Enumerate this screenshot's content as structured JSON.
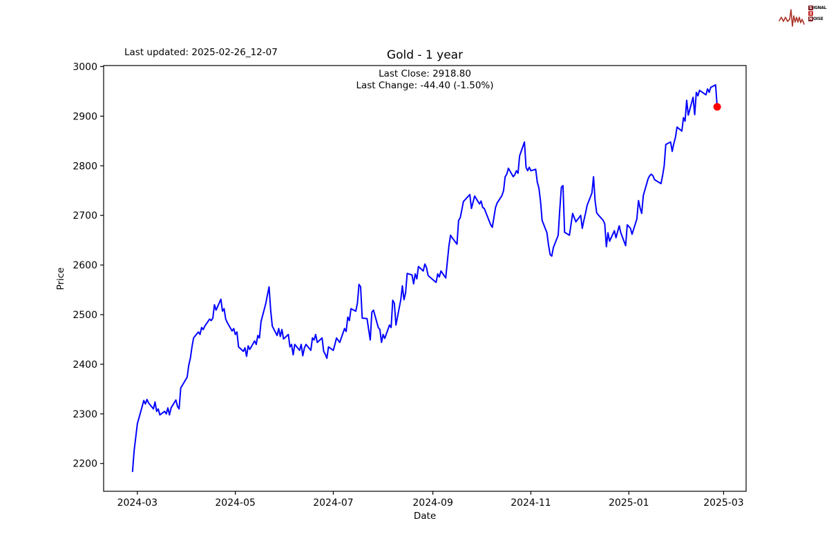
{
  "header": {
    "last_updated": "Last updated: 2025-02-26_12-07",
    "title": "Gold - 1 year",
    "annotation_line1": "Last Close: 2918.80",
    "annotation_line2": "Last Change: -44.40 (-1.50%)"
  },
  "logo": {
    "row1_initial": "S",
    "row1_rest": "IGNAL",
    "row2_initial": "2",
    "row2_rest": "",
    "row3_initial": "N",
    "row3_rest": "OISE",
    "wave_color": "#a93226",
    "box_dark": "#7e1a1d",
    "box_bright": "#c93030"
  },
  "chart_data": {
    "type": "line",
    "title": "Gold - 1 year",
    "xlabel": "Date",
    "ylabel": "Price",
    "line_color": "#0000ff",
    "last_point_color": "#ff0000",
    "axis_color": "#000000",
    "ylim": [
      2144,
      3002
    ],
    "xlim": [
      "2024-02-09",
      "2025-03-15"
    ],
    "grid": false,
    "legend": "none",
    "yticks": [
      2200,
      2300,
      2400,
      2500,
      2600,
      2700,
      2800,
      2900,
      3000
    ],
    "xticks": [
      {
        "date": "2024-03-01",
        "label": "2024-03"
      },
      {
        "date": "2024-05-01",
        "label": "2024-05"
      },
      {
        "date": "2024-07-01",
        "label": "2024-07"
      },
      {
        "date": "2024-09-01",
        "label": "2024-09"
      },
      {
        "date": "2024-11-01",
        "label": "2024-11"
      },
      {
        "date": "2025-01-01",
        "label": "2025-01"
      },
      {
        "date": "2025-03-01",
        "label": "2025-03"
      }
    ],
    "last_close": 2918.8,
    "last_change": -44.4,
    "last_change_pct": -1.5,
    "series": [
      {
        "name": "Gold",
        "points": [
          [
            "2024-02-27",
            2184
          ],
          [
            "2024-02-28",
            2226
          ],
          [
            "2024-02-29",
            2253
          ],
          [
            "2024-03-01",
            2280
          ],
          [
            "2024-03-04",
            2315
          ],
          [
            "2024-03-05",
            2327
          ],
          [
            "2024-03-06",
            2320
          ],
          [
            "2024-03-07",
            2329
          ],
          [
            "2024-03-08",
            2322
          ],
          [
            "2024-03-11",
            2310
          ],
          [
            "2024-03-12",
            2324
          ],
          [
            "2024-03-13",
            2305
          ],
          [
            "2024-03-14",
            2310
          ],
          [
            "2024-03-15",
            2298
          ],
          [
            "2024-03-18",
            2305
          ],
          [
            "2024-03-19",
            2300
          ],
          [
            "2024-03-20",
            2312
          ],
          [
            "2024-03-21",
            2298
          ],
          [
            "2024-03-22",
            2312
          ],
          [
            "2024-03-25",
            2328
          ],
          [
            "2024-03-26",
            2315
          ],
          [
            "2024-03-27",
            2310
          ],
          [
            "2024-03-28",
            2352
          ],
          [
            "2024-04-01",
            2374
          ],
          [
            "2024-04-02",
            2398
          ],
          [
            "2024-04-03",
            2412
          ],
          [
            "2024-04-04",
            2435
          ],
          [
            "2024-04-05",
            2453
          ],
          [
            "2024-04-08",
            2465
          ],
          [
            "2024-04-09",
            2460
          ],
          [
            "2024-04-10",
            2474
          ],
          [
            "2024-04-11",
            2470
          ],
          [
            "2024-04-12",
            2477
          ],
          [
            "2024-04-15",
            2491
          ],
          [
            "2024-04-16",
            2488
          ],
          [
            "2024-04-17",
            2493
          ],
          [
            "2024-04-18",
            2520
          ],
          [
            "2024-04-19",
            2509
          ],
          [
            "2024-04-22",
            2531
          ],
          [
            "2024-04-23",
            2507
          ],
          [
            "2024-04-24",
            2512
          ],
          [
            "2024-04-25",
            2491
          ],
          [
            "2024-04-26",
            2484
          ],
          [
            "2024-04-29",
            2467
          ],
          [
            "2024-04-30",
            2472
          ],
          [
            "2024-05-01",
            2460
          ],
          [
            "2024-05-02",
            2465
          ],
          [
            "2024-05-03",
            2435
          ],
          [
            "2024-05-06",
            2426
          ],
          [
            "2024-05-07",
            2433
          ],
          [
            "2024-05-08",
            2416
          ],
          [
            "2024-05-09",
            2437
          ],
          [
            "2024-05-10",
            2430
          ],
          [
            "2024-05-13",
            2447
          ],
          [
            "2024-05-14",
            2440
          ],
          [
            "2024-05-15",
            2458
          ],
          [
            "2024-05-16",
            2453
          ],
          [
            "2024-05-17",
            2486
          ],
          [
            "2024-05-20",
            2523
          ],
          [
            "2024-05-21",
            2540
          ],
          [
            "2024-05-22",
            2556
          ],
          [
            "2024-05-23",
            2509
          ],
          [
            "2024-05-24",
            2477
          ],
          [
            "2024-05-27",
            2458
          ],
          [
            "2024-05-28",
            2472
          ],
          [
            "2024-05-29",
            2456
          ],
          [
            "2024-05-30",
            2470
          ],
          [
            "2024-05-31",
            2451
          ],
          [
            "2024-06-03",
            2460
          ],
          [
            "2024-06-04",
            2435
          ],
          [
            "2024-06-05",
            2440
          ],
          [
            "2024-06-06",
            2419
          ],
          [
            "2024-06-07",
            2440
          ],
          [
            "2024-06-10",
            2428
          ],
          [
            "2024-06-11",
            2440
          ],
          [
            "2024-06-12",
            2417
          ],
          [
            "2024-06-13",
            2433
          ],
          [
            "2024-06-14",
            2440
          ],
          [
            "2024-06-17",
            2428
          ],
          [
            "2024-06-18",
            2453
          ],
          [
            "2024-06-19",
            2449
          ],
          [
            "2024-06-20",
            2460
          ],
          [
            "2024-06-21",
            2444
          ],
          [
            "2024-06-24",
            2453
          ],
          [
            "2024-06-25",
            2426
          ],
          [
            "2024-06-26",
            2420
          ],
          [
            "2024-06-27",
            2412
          ],
          [
            "2024-06-28",
            2435
          ],
          [
            "2024-07-01",
            2428
          ],
          [
            "2024-07-02",
            2440
          ],
          [
            "2024-07-03",
            2453
          ],
          [
            "2024-07-05",
            2444
          ],
          [
            "2024-07-08",
            2472
          ],
          [
            "2024-07-09",
            2466
          ],
          [
            "2024-07-10",
            2495
          ],
          [
            "2024-07-11",
            2488
          ],
          [
            "2024-07-12",
            2512
          ],
          [
            "2024-07-15",
            2507
          ],
          [
            "2024-07-16",
            2523
          ],
          [
            "2024-07-17",
            2561
          ],
          [
            "2024-07-18",
            2556
          ],
          [
            "2024-07-19",
            2493
          ],
          [
            "2024-07-22",
            2492
          ],
          [
            "2024-07-23",
            2470
          ],
          [
            "2024-07-24",
            2449
          ],
          [
            "2024-07-25",
            2505
          ],
          [
            "2024-07-26",
            2509
          ],
          [
            "2024-07-29",
            2474
          ],
          [
            "2024-07-30",
            2470
          ],
          [
            "2024-07-31",
            2444
          ],
          [
            "2024-08-01",
            2460
          ],
          [
            "2024-08-02",
            2452
          ],
          [
            "2024-08-05",
            2479
          ],
          [
            "2024-08-06",
            2474
          ],
          [
            "2024-08-07",
            2529
          ],
          [
            "2024-08-08",
            2523
          ],
          [
            "2024-08-09",
            2479
          ],
          [
            "2024-08-12",
            2530
          ],
          [
            "2024-08-13",
            2558
          ],
          [
            "2024-08-14",
            2530
          ],
          [
            "2024-08-15",
            2544
          ],
          [
            "2024-08-16",
            2583
          ],
          [
            "2024-08-19",
            2580
          ],
          [
            "2024-08-20",
            2562
          ],
          [
            "2024-08-21",
            2582
          ],
          [
            "2024-08-22",
            2572
          ],
          [
            "2024-08-23",
            2597
          ],
          [
            "2024-08-26",
            2588
          ],
          [
            "2024-08-27",
            2602
          ],
          [
            "2024-08-28",
            2595
          ],
          [
            "2024-08-29",
            2579
          ],
          [
            "2024-08-30",
            2576
          ],
          [
            "2024-09-03",
            2565
          ],
          [
            "2024-09-04",
            2582
          ],
          [
            "2024-09-05",
            2576
          ],
          [
            "2024-09-06",
            2588
          ],
          [
            "2024-09-09",
            2574
          ],
          [
            "2024-09-10",
            2607
          ],
          [
            "2024-09-11",
            2639
          ],
          [
            "2024-09-12",
            2660
          ],
          [
            "2024-09-13",
            2655
          ],
          [
            "2024-09-16",
            2642
          ],
          [
            "2024-09-17",
            2690
          ],
          [
            "2024-09-18",
            2695
          ],
          [
            "2024-09-19",
            2711
          ],
          [
            "2024-09-20",
            2728
          ],
          [
            "2024-09-24",
            2742
          ],
          [
            "2024-09-25",
            2714
          ],
          [
            "2024-09-27",
            2739
          ],
          [
            "2024-09-30",
            2723
          ],
          [
            "2024-10-01",
            2729
          ],
          [
            "2024-10-02",
            2716
          ],
          [
            "2024-10-03",
            2714
          ],
          [
            "2024-10-07",
            2681
          ],
          [
            "2024-10-08",
            2676
          ],
          [
            "2024-10-10",
            2716
          ],
          [
            "2024-10-11",
            2725
          ],
          [
            "2024-10-14",
            2740
          ],
          [
            "2024-10-15",
            2750
          ],
          [
            "2024-10-16",
            2778
          ],
          [
            "2024-10-17",
            2783
          ],
          [
            "2024-10-18",
            2795
          ],
          [
            "2024-10-21",
            2778
          ],
          [
            "2024-10-22",
            2782
          ],
          [
            "2024-10-23",
            2790
          ],
          [
            "2024-10-24",
            2785
          ],
          [
            "2024-10-25",
            2820
          ],
          [
            "2024-10-28",
            2848
          ],
          [
            "2024-10-29",
            2797
          ],
          [
            "2024-10-30",
            2790
          ],
          [
            "2024-10-31",
            2797
          ],
          [
            "2024-11-01",
            2790
          ],
          [
            "2024-11-04",
            2793
          ],
          [
            "2024-11-05",
            2767
          ],
          [
            "2024-11-06",
            2755
          ],
          [
            "2024-11-07",
            2729
          ],
          [
            "2024-11-08",
            2690
          ],
          [
            "2024-11-11",
            2665
          ],
          [
            "2024-11-12",
            2640
          ],
          [
            "2024-11-13",
            2621
          ],
          [
            "2024-11-14",
            2618
          ],
          [
            "2024-11-15",
            2635
          ],
          [
            "2024-11-18",
            2660
          ],
          [
            "2024-11-19",
            2712
          ],
          [
            "2024-11-20",
            2757
          ],
          [
            "2024-11-21",
            2760
          ],
          [
            "2024-11-22",
            2666
          ],
          [
            "2024-11-25",
            2660
          ],
          [
            "2024-11-26",
            2682
          ],
          [
            "2024-11-27",
            2704
          ],
          [
            "2024-11-29",
            2687
          ],
          [
            "2024-12-02",
            2700
          ],
          [
            "2024-12-03",
            2674
          ],
          [
            "2024-12-04",
            2690
          ],
          [
            "2024-12-05",
            2704
          ],
          [
            "2024-12-06",
            2720
          ],
          [
            "2024-12-09",
            2745
          ],
          [
            "2024-12-10",
            2778
          ],
          [
            "2024-12-11",
            2729
          ],
          [
            "2024-12-12",
            2705
          ],
          [
            "2024-12-13",
            2701
          ],
          [
            "2024-12-16",
            2690
          ],
          [
            "2024-12-17",
            2683
          ],
          [
            "2024-12-18",
            2637
          ],
          [
            "2024-12-19",
            2665
          ],
          [
            "2024-12-20",
            2648
          ],
          [
            "2024-12-23",
            2669
          ],
          [
            "2024-12-24",
            2655
          ],
          [
            "2024-12-26",
            2679
          ],
          [
            "2024-12-27",
            2665
          ],
          [
            "2024-12-30",
            2639
          ],
          [
            "2024-12-31",
            2681
          ],
          [
            "2025-01-02",
            2674
          ],
          [
            "2025-01-03",
            2662
          ],
          [
            "2025-01-06",
            2693
          ],
          [
            "2025-01-07",
            2730
          ],
          [
            "2025-01-08",
            2715
          ],
          [
            "2025-01-09",
            2704
          ],
          [
            "2025-01-10",
            2740
          ],
          [
            "2025-01-13",
            2774
          ],
          [
            "2025-01-14",
            2780
          ],
          [
            "2025-01-15",
            2783
          ],
          [
            "2025-01-16",
            2780
          ],
          [
            "2025-01-17",
            2772
          ],
          [
            "2025-01-21",
            2764
          ],
          [
            "2025-01-22",
            2780
          ],
          [
            "2025-01-23",
            2800
          ],
          [
            "2025-01-24",
            2843
          ],
          [
            "2025-01-27",
            2848
          ],
          [
            "2025-01-28",
            2829
          ],
          [
            "2025-01-29",
            2845
          ],
          [
            "2025-01-30",
            2857
          ],
          [
            "2025-01-31",
            2878
          ],
          [
            "2025-02-03",
            2870
          ],
          [
            "2025-02-04",
            2897
          ],
          [
            "2025-02-05",
            2890
          ],
          [
            "2025-02-06",
            2932
          ],
          [
            "2025-02-07",
            2902
          ],
          [
            "2025-02-10",
            2938
          ],
          [
            "2025-02-11",
            2903
          ],
          [
            "2025-02-12",
            2948
          ],
          [
            "2025-02-13",
            2941
          ],
          [
            "2025-02-14",
            2952
          ],
          [
            "2025-02-18",
            2943
          ],
          [
            "2025-02-19",
            2955
          ],
          [
            "2025-02-20",
            2948
          ],
          [
            "2025-02-21",
            2958
          ],
          [
            "2025-02-24",
            2963
          ],
          [
            "2025-02-25",
            2918.8
          ]
        ]
      }
    ]
  }
}
